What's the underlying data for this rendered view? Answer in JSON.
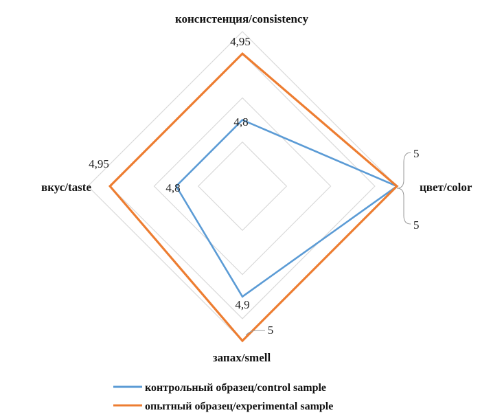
{
  "chart_data": {
    "type": "radar",
    "axes": [
      "консистенция/consistency",
      "цвет/color",
      "запах/smell",
      "вкус/taste"
    ],
    "rmin": 4.65,
    "rmax": 5.0,
    "grid_rings": [
      4.75,
      4.85,
      4.95,
      5.0
    ],
    "grid": true,
    "legend_position": "bottom",
    "series": [
      {
        "name": "контрольный образец/control sample",
        "color": "#5b9bd5",
        "values": [
          4.8,
          5,
          4.9,
          4.8
        ],
        "labels": [
          "4,8",
          "5",
          "4,9",
          "4,8"
        ]
      },
      {
        "name": "опытный образец/experimental sample",
        "color": "#ed7d31",
        "values": [
          4.95,
          5,
          5,
          4.95
        ],
        "labels": [
          "4,95",
          "5",
          "5",
          "4,95"
        ]
      }
    ]
  }
}
